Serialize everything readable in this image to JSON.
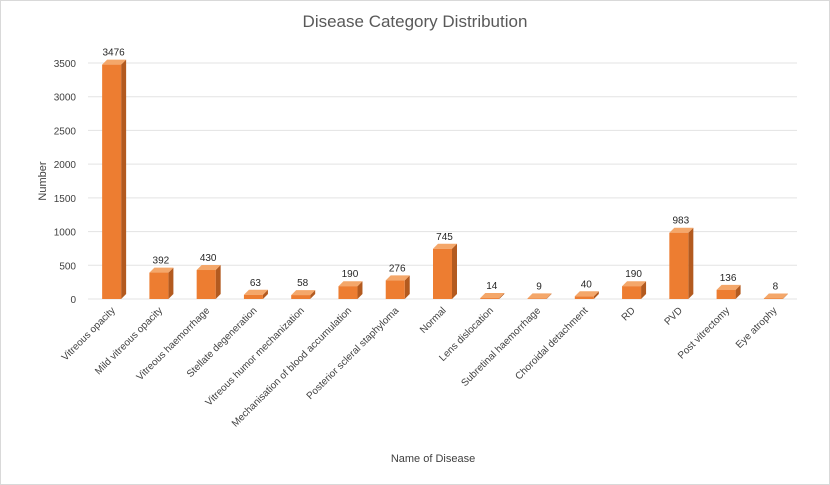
{
  "chart_data": {
    "type": "bar",
    "title": "Disease Category Distribution",
    "xlabel": "Name of Disease",
    "ylabel": "Number",
    "ylim": [
      0,
      3500
    ],
    "yticks": [
      0,
      500,
      1000,
      1500,
      2000,
      2500,
      3000,
      3500
    ],
    "grid": true,
    "categories": [
      "Vitreous opacity",
      "Mild vitreous opacity",
      "Vitreous haemorrhage",
      "Stellate degeneration",
      "Vitreous humor mechanization",
      "Mechanisation of blood accumulation",
      "Posterior scleral staphyloma",
      "Normal",
      "Lens dislocation",
      "Subretinal haemorrhage",
      "Choroidal detachment",
      "RD",
      "PVD",
      "Post vitrectomy",
      "Eye atrophy"
    ],
    "values": [
      3476,
      392,
      430,
      63,
      58,
      190,
      276,
      745,
      14,
      9,
      40,
      190,
      983,
      136,
      8
    ],
    "colors": {
      "front": "#ed7d31",
      "side": "#b35a1f",
      "top": "#f4a76a"
    }
  }
}
